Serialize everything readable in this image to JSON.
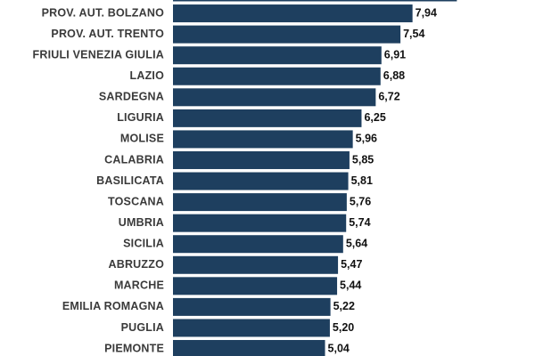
{
  "chart_data": {
    "type": "barh",
    "categories": [
      null,
      "PROV. AUT. BOLZANO",
      "PROV. AUT. TRENTO",
      "FRIULI VENEZIA GIULIA",
      "LAZIO",
      "SARDEGNA",
      "LIGURIA",
      "MOLISE",
      "CALABRIA",
      "BASILICATA",
      "TOSCANA",
      "UMBRIA",
      "SICILIA",
      "ABRUZZO",
      "MARCHE",
      "EMILIA ROMAGNA",
      "PUGLIA",
      "PIEMONTE"
    ],
    "values": [
      9.41,
      7.94,
      7.54,
      6.91,
      6.88,
      6.72,
      6.25,
      5.96,
      5.85,
      5.81,
      5.76,
      5.74,
      5.64,
      5.47,
      5.44,
      5.22,
      5.2,
      5.04
    ],
    "value_labels": [
      null,
      "7,94",
      "7,54",
      "6,91",
      "6,88",
      "6,72",
      "6,25",
      "5,96",
      "5,85",
      "5,81",
      "5,76",
      "5,74",
      "5,64",
      "5,47",
      "5,44",
      "5,22",
      "5,20",
      "5,04"
    ],
    "color": "#1e3f5f",
    "xlim": [
      0,
      12
    ]
  }
}
